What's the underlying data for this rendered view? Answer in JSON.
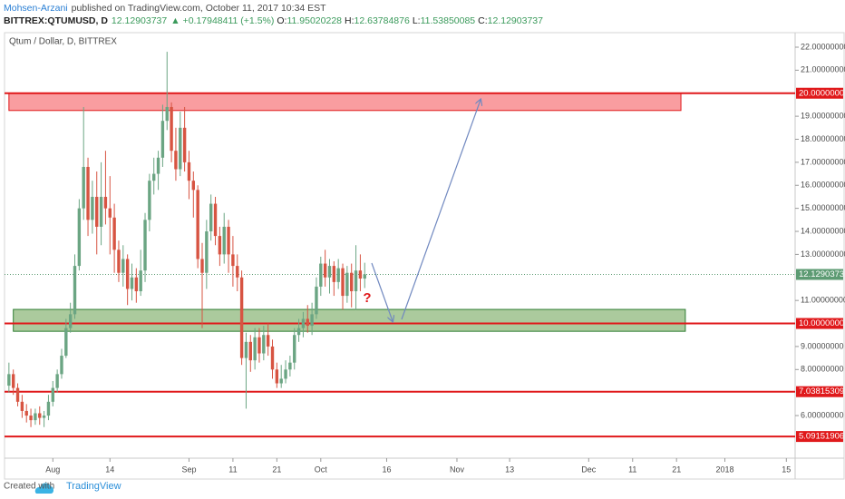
{
  "header": {
    "author": "Mohsen-Arzani",
    "published": "published on TradingView.com, October 11, 2017 10:34 EST",
    "symbol": "BITTREX:QTUMUSD, D",
    "last": "12.12903737",
    "change": "▲ +0.17948411 (+1.5%)",
    "open_label": "O:",
    "open": "11.95020228",
    "high_label": "H:",
    "high": "12.63784876",
    "low_label": "L:",
    "low": "11.53850085",
    "close_label": "C:",
    "close": "12.12903737"
  },
  "footer": {
    "created": "Created with",
    "brand": "TradingView"
  },
  "chart_data": {
    "type": "candlestick",
    "title": "Qtum / Dollar, D, BITTREX",
    "x": [
      "2017-07-22",
      "2017-07-23",
      "2017-07-24",
      "2017-07-25",
      "2017-07-26",
      "2017-07-27",
      "2017-07-28",
      "2017-07-29",
      "2017-07-30",
      "2017-07-31",
      "2017-08-01",
      "2017-08-02",
      "2017-08-03",
      "2017-08-04",
      "2017-08-05",
      "2017-08-06",
      "2017-08-07",
      "2017-08-08",
      "2017-08-09",
      "2017-08-10",
      "2017-08-11",
      "2017-08-12",
      "2017-08-13",
      "2017-08-14",
      "2017-08-15",
      "2017-08-16",
      "2017-08-17",
      "2017-08-18",
      "2017-08-19",
      "2017-08-20",
      "2017-08-21",
      "2017-08-22",
      "2017-08-23",
      "2017-08-24",
      "2017-08-25",
      "2017-08-26",
      "2017-08-27",
      "2017-08-28",
      "2017-08-29",
      "2017-08-30",
      "2017-08-31",
      "2017-09-01",
      "2017-09-02",
      "2017-09-03",
      "2017-09-04",
      "2017-09-05",
      "2017-09-06",
      "2017-09-07",
      "2017-09-08",
      "2017-09-09",
      "2017-09-10",
      "2017-09-11",
      "2017-09-12",
      "2017-09-13",
      "2017-09-14",
      "2017-09-15",
      "2017-09-16",
      "2017-09-17",
      "2017-09-18",
      "2017-09-19",
      "2017-09-20",
      "2017-09-21",
      "2017-09-22",
      "2017-09-23",
      "2017-09-24",
      "2017-09-25",
      "2017-09-26",
      "2017-09-27",
      "2017-09-28",
      "2017-09-29",
      "2017-09-30",
      "2017-10-01",
      "2017-10-02",
      "2017-10-03",
      "2017-10-04",
      "2017-10-05",
      "2017-10-06",
      "2017-10-07",
      "2017-10-08",
      "2017-10-09",
      "2017-10-10",
      "2017-10-11"
    ],
    "open": [
      7.3,
      7.8,
      7.2,
      6.6,
      6.2,
      6.0,
      5.8,
      6.1,
      5.9,
      6.0,
      6.6,
      7.2,
      7.8,
      8.6,
      9.8,
      10.4,
      12.5,
      15.0,
      16.8,
      14.5,
      15.5,
      14.2,
      15.5,
      15.0,
      14.6,
      13.2,
      12.2,
      12.8,
      11.5,
      12.0,
      11.4,
      12.3,
      14.5,
      16.2,
      16.5,
      17.2,
      18.8,
      19.4,
      17.5,
      16.7,
      18.5,
      17.0,
      16.2,
      15.8,
      12.8,
      12.2,
      14.0,
      15.2,
      13.8,
      13.0,
      14.2,
      13.0,
      12.5,
      12.0,
      8.5,
      9.2,
      8.4,
      9.4,
      8.7,
      9.5,
      9.0,
      8.0,
      7.4,
      7.6,
      8.0,
      8.3,
      9.5,
      9.8,
      10.2,
      9.9,
      10.4,
      11.6,
      12.6,
      12.0,
      12.5,
      11.8,
      12.4,
      11.2,
      12.2,
      11.4,
      12.3,
      11.95020228
    ],
    "high": [
      8.3,
      8.0,
      7.4,
      6.9,
      6.5,
      6.3,
      6.3,
      6.4,
      6.2,
      6.9,
      7.5,
      8.0,
      8.9,
      10.2,
      10.9,
      13.0,
      15.4,
      19.4,
      17.2,
      16.2,
      16.6,
      17.0,
      17.5,
      16.4,
      15.2,
      13.6,
      13.4,
      13.0,
      12.6,
      12.4,
      13.2,
      14.8,
      16.5,
      17.2,
      17.5,
      19.5,
      21.8,
      19.6,
      18.5,
      19.2,
      19.4,
      17.5,
      16.6,
      16.0,
      13.5,
      14.5,
      15.6,
      15.5,
      14.2,
      14.8,
      14.5,
      13.8,
      13.0,
      12.3,
      9.6,
      9.5,
      9.8,
      9.8,
      9.9,
      10.0,
      9.3,
      8.3,
      8.2,
      8.4,
      8.6,
      9.8,
      10.2,
      10.5,
      10.8,
      10.9,
      12.0,
      12.9,
      13.2,
      12.8,
      12.7,
      12.8,
      12.6,
      12.5,
      12.6,
      13.4,
      13.0,
      12.63784876
    ],
    "low": [
      7.0,
      6.9,
      6.4,
      5.9,
      5.7,
      5.5,
      5.6,
      5.6,
      5.5,
      5.8,
      6.4,
      7.0,
      7.6,
      8.5,
      9.6,
      10.2,
      12.3,
      14.5,
      13.8,
      13.9,
      13.0,
      13.4,
      14.3,
      13.0,
      12.2,
      11.8,
      11.6,
      10.8,
      11.0,
      10.9,
      11.2,
      11.8,
      14.0,
      15.6,
      15.8,
      16.8,
      18.4,
      17.0,
      16.2,
      16.4,
      16.6,
      15.4,
      14.6,
      12.4,
      9.8,
      11.5,
      13.6,
      13.4,
      12.5,
      12.6,
      12.2,
      11.6,
      11.4,
      8.2,
      6.3,
      7.9,
      8.0,
      8.3,
      8.4,
      8.6,
      7.6,
      7.2,
      7.2,
      7.4,
      7.7,
      8.0,
      9.2,
      9.4,
      9.6,
      9.5,
      10.2,
      11.2,
      11.6,
      11.3,
      11.2,
      11.5,
      10.6,
      10.9,
      10.7,
      10.6,
      11.4,
      11.53850085
    ],
    "close": [
      7.8,
      7.2,
      6.6,
      6.2,
      6.0,
      5.8,
      6.1,
      5.9,
      6.0,
      6.6,
      7.2,
      7.8,
      8.6,
      9.8,
      10.4,
      12.5,
      15.0,
      16.8,
      14.5,
      15.5,
      14.2,
      15.5,
      15.0,
      14.6,
      13.2,
      12.2,
      12.8,
      11.5,
      12.0,
      11.4,
      12.3,
      14.5,
      16.2,
      16.5,
      17.2,
      18.8,
      19.4,
      17.5,
      16.7,
      18.5,
      17.0,
      16.2,
      15.8,
      12.8,
      12.2,
      14.0,
      15.2,
      13.8,
      13.0,
      14.2,
      13.0,
      12.5,
      12.0,
      8.5,
      9.2,
      8.4,
      9.4,
      8.7,
      9.5,
      9.0,
      8.0,
      7.4,
      7.6,
      8.0,
      8.3,
      9.5,
      9.8,
      10.2,
      9.9,
      10.4,
      11.6,
      12.6,
      12.0,
      12.5,
      11.8,
      12.4,
      11.2,
      12.2,
      11.4,
      12.3,
      11.95020228,
      12.12903737
    ],
    "up_color": "#6ba583",
    "down_color": "#d75442",
    "xlim": [
      "2017-07-21",
      "2018-01-17"
    ],
    "xticks": [
      {
        "value": "2017-08-01",
        "label": "Aug"
      },
      {
        "value": "2017-08-14",
        "label": "14"
      },
      {
        "value": "2017-09-01",
        "label": "Sep"
      },
      {
        "value": "2017-09-11",
        "label": "11"
      },
      {
        "value": "2017-09-21",
        "label": "21"
      },
      {
        "value": "2017-10-01",
        "label": "Oct"
      },
      {
        "value": "2017-10-16",
        "label": "16"
      },
      {
        "value": "2017-11-01",
        "label": "Nov"
      },
      {
        "value": "2017-11-13",
        "label": "13"
      },
      {
        "value": "2017-12-01",
        "label": "Dec"
      },
      {
        "value": "2017-12-11",
        "label": "11"
      },
      {
        "value": "2017-12-21",
        "label": "21"
      },
      {
        "value": "2018-01-01",
        "label": "2018"
      },
      {
        "value": "2018-01-15",
        "label": "15"
      }
    ],
    "ylim": [
      4.15,
      22.63
    ],
    "yticks": [
      {
        "value": 6,
        "label": "6.00000000"
      },
      {
        "value": 8,
        "label": "8.00000000"
      },
      {
        "value": 9,
        "label": "9.00000000"
      },
      {
        "value": 11,
        "label": "11.00000000"
      },
      {
        "value": 13,
        "label": "13.00000000"
      },
      {
        "value": 14,
        "label": "14.00000000"
      },
      {
        "value": 15,
        "label": "15.00000000"
      },
      {
        "value": 16,
        "label": "16.00000000"
      },
      {
        "value": 17,
        "label": "17.00000000"
      },
      {
        "value": 18,
        "label": "18.00000000"
      },
      {
        "value": 19,
        "label": "19.00000000"
      },
      {
        "value": 21,
        "label": "21.00000000"
      },
      {
        "value": 22,
        "label": "22.00000000"
      }
    ],
    "grid": false,
    "levels": {
      "values": [
        20,
        10,
        7.03815309,
        5.09151906
      ],
      "value_labels": [
        "20.00000000",
        "10.00000000",
        "7.03815309",
        "5.09151906"
      ],
      "color": "#e0191b"
    },
    "last_price": {
      "value": 12.12903737,
      "value_label": "12.12903737",
      "color": "#5d9b73"
    },
    "zones": [
      {
        "start": "2017-07-22",
        "end": "2017-12-22",
        "low": 19.25,
        "high": 20,
        "color": "#f77c80",
        "edge": "#e0191b"
      },
      {
        "start": "2017-07-23",
        "end": "2017-12-23",
        "low": 9.66,
        "high": 10.61,
        "color": "#8fb87c",
        "edge": "#2e7d32"
      }
    ],
    "annotation": "?"
  }
}
